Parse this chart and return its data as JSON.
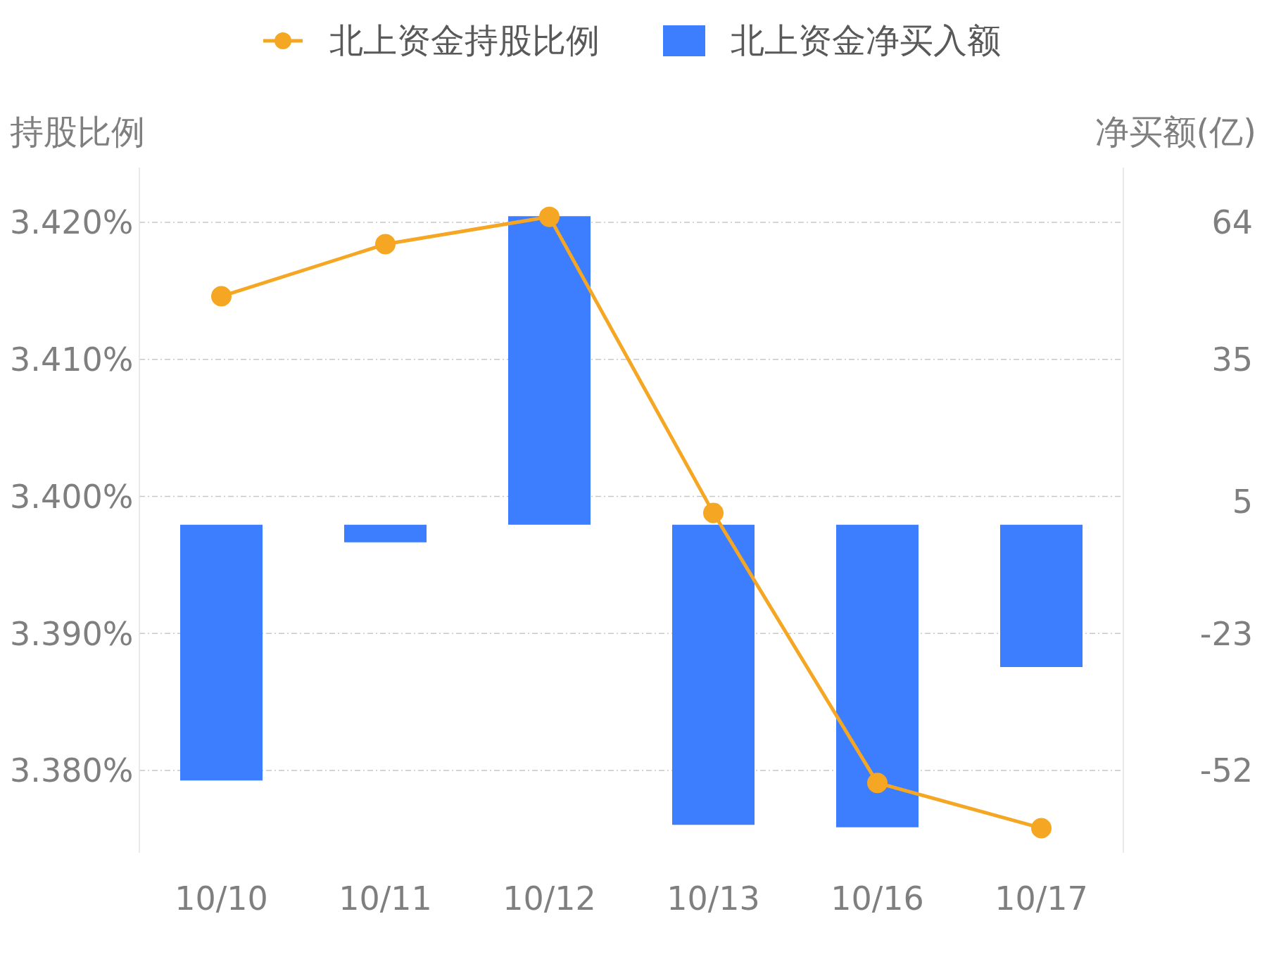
{
  "chart_data": {
    "type": "bar",
    "ylabel": "持股比例",
    "y2label": "净买额(亿)",
    "categories": [
      "10/10",
      "10/11",
      "10/12",
      "10/13",
      "10/16",
      "10/17"
    ],
    "series": [
      {
        "name": "北上资金持股比例",
        "type": "line",
        "color": "#f5a623",
        "marker": "circle",
        "values": [
          3.4146,
          3.4184,
          3.4204,
          3.3988,
          3.3791,
          3.3758
        ]
      },
      {
        "name": "北上资金净买入额",
        "axis": "y2",
        "color": "#3d7eff",
        "values": [
          -54.1,
          -3.7,
          65.3,
          -63.5,
          -64.0,
          -30.1
        ]
      }
    ],
    "ylim": [
      3.374,
      3.424
    ],
    "yticks": [
      {
        "value": 3.38,
        "label": "3.380%"
      },
      {
        "value": 3.39,
        "label": "3.390%"
      },
      {
        "value": 3.4,
        "label": "3.400%"
      },
      {
        "value": 3.41,
        "label": "3.410%"
      },
      {
        "value": 3.42,
        "label": "3.420%"
      }
    ],
    "y2lim": [
      -69.4,
      75.6
    ],
    "y2ticks": [
      -52,
      -23,
      5,
      35,
      64
    ],
    "grid": "y",
    "legend": "top"
  }
}
